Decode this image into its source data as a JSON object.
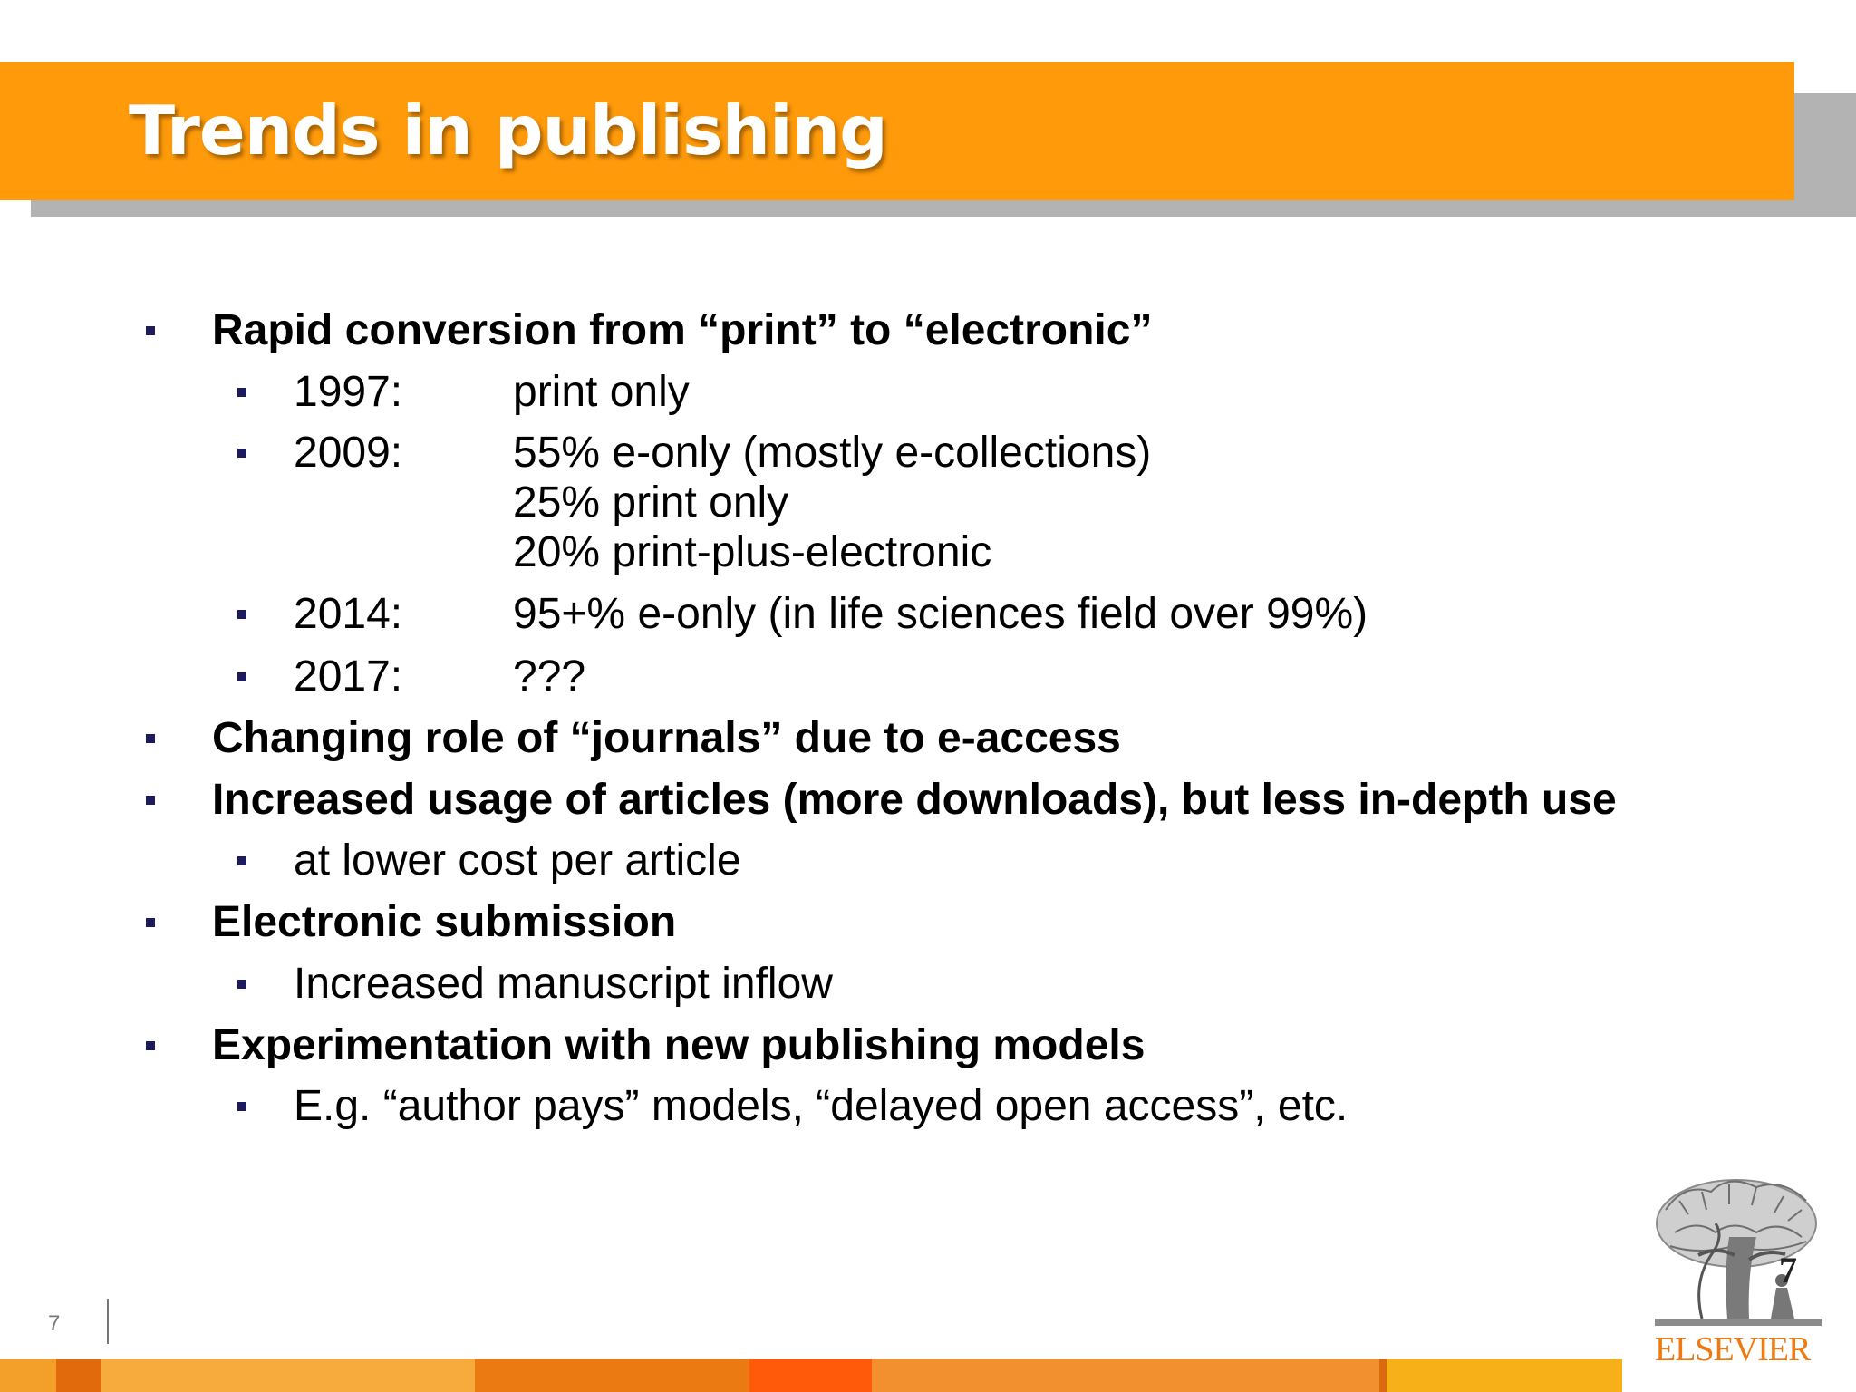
{
  "slide": {
    "title": "Trends in publishing",
    "page_number": "7"
  },
  "bullets": {
    "b1": "Rapid conversion from “print” to “electronic”",
    "b1_sub": [
      {
        "year": "1997:",
        "text": "print only"
      },
      {
        "year": "2009:",
        "text": "55% e-only (mostly e-collections)",
        "cont1": "25% print only",
        "cont2": "20% print-plus-electronic"
      },
      {
        "year": "2014:",
        "text": "95+% e-only (in life sciences field over 99%)"
      },
      {
        "year": "2017:",
        "text": "???"
      }
    ],
    "b2": "Changing role of “journals” due to e-access",
    "b3": "Increased usage of articles (more downloads), but less in-depth use",
    "b3_sub": "at lower cost per article",
    "b4": "Electronic submission",
    "b4_sub": "Increased manuscript inflow",
    "b5": "Experimentation with new publishing models",
    "b5_sub": "E.g. “author pays” models, “delayed open access”, etc."
  },
  "logo": {
    "number": "7",
    "wordmark": "ELSEVIER",
    "icon": "elsevier-tree-icon"
  },
  "colors": {
    "header": "#ff9b0a",
    "header_shadow": "#b3b3b3",
    "bullet": "#1b1b5e",
    "logo_text": "#f07a10"
  }
}
